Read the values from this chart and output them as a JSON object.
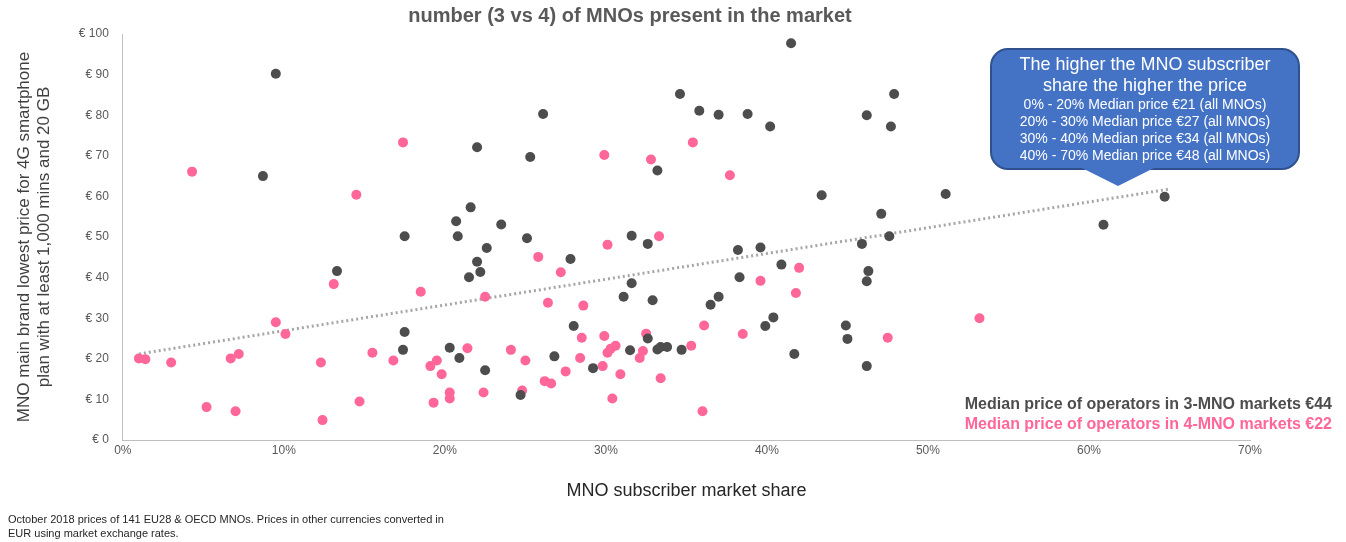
{
  "chart_data": {
    "type": "scatter",
    "title": "number (3 vs 4) of MNOs present in the market",
    "xlabel": "MNO subscriber market share",
    "ylabel": "MNO main brand lowest price for 4G smartphone plan with at least 1,000 mins and 20 GB",
    "xlim": [
      0,
      70
    ],
    "xticks": [
      {
        "value": 0,
        "label": "0%"
      },
      {
        "value": 10,
        "label": "10%"
      },
      {
        "value": 20,
        "label": "20%"
      },
      {
        "value": 30,
        "label": "30%"
      },
      {
        "value": 40,
        "label": "40%"
      },
      {
        "value": 50,
        "label": "50%"
      },
      {
        "value": 60,
        "label": "60%"
      },
      {
        "value": 70,
        "label": "70%"
      }
    ],
    "ylim": [
      0,
      100
    ],
    "yticks": [
      {
        "value": 0,
        "label": "€ 0"
      },
      {
        "value": 10,
        "label": "€ 10"
      },
      {
        "value": 20,
        "label": "€ 20"
      },
      {
        "value": 30,
        "label": "€ 30"
      },
      {
        "value": 40,
        "label": "€ 40"
      },
      {
        "value": 50,
        "label": "€ 50"
      },
      {
        "value": 60,
        "label": "€ 60"
      },
      {
        "value": 70,
        "label": "€ 70"
      },
      {
        "value": 80,
        "label": "€ 80"
      },
      {
        "value": 90,
        "label": "€ 90"
      },
      {
        "value": 100,
        "label": "€ 100"
      }
    ],
    "grid": false,
    "marker": "circle",
    "legend": "bottom right",
    "series": [
      {
        "name": "Median price of operators in 3-MNO markets €44",
        "color": "#4d4d4d",
        "x": [
          9.5,
          8.7,
          22.0,
          21.6,
          20.7,
          17.5,
          20.8,
          23.5,
          22.6,
          22.0,
          22.2,
          21.5,
          13.3,
          25.1,
          25.3,
          17.5,
          17.4,
          20.3,
          20.9,
          22.5,
          24.7,
          41.5,
          34.6,
          35.8,
          37.0,
          38.8,
          40.2,
          46.2,
          47.9,
          47.7,
          26.1,
          33.2,
          43.4,
          51.1,
          47.1,
          31.6,
          32.6,
          27.8,
          38.2,
          39.6,
          45.9,
          47.6,
          40.9,
          38.3,
          46.3,
          46.2,
          31.6,
          31.1,
          32.9,
          36.5,
          37.0,
          40.4,
          39.9,
          44.9,
          45.0,
          28.0,
          32.6,
          26.8,
          29.2,
          31.5,
          33.2,
          33.4,
          33.8,
          34.7,
          41.7,
          46.2,
          64.7,
          60.9
        ],
        "values": [
          90.2,
          65.0,
          72.1,
          57.3,
          53.9,
          50.2,
          50.2,
          53.1,
          47.3,
          43.9,
          41.4,
          40.1,
          41.6,
          49.7,
          69.7,
          26.6,
          22.2,
          22.7,
          20.2,
          17.2,
          11.1,
          97.7,
          85.2,
          81.1,
          80.1,
          80.3,
          77.2,
          80.0,
          85.2,
          77.2,
          80.3,
          66.4,
          60.3,
          60.6,
          55.7,
          50.3,
          48.3,
          44.6,
          46.8,
          47.4,
          48.3,
          50.2,
          43.2,
          40.1,
          41.6,
          39.1,
          38.6,
          35.3,
          34.4,
          33.3,
          35.3,
          30.2,
          28.1,
          28.2,
          24.9,
          28.1,
          25.0,
          20.6,
          17.7,
          22.1,
          22.3,
          22.9,
          22.9,
          22.2,
          21.2,
          18.2,
          59.9,
          53.0
        ]
      },
      {
        "name": "Median price of operators in 4-MNO markets €22",
        "color": "#ff6699",
        "x": [
          17.4,
          4.3,
          14.5,
          13.1,
          18.5,
          22.5,
          9.5,
          10.1,
          1.0,
          1.4,
          3.0,
          6.7,
          7.2,
          12.3,
          15.5,
          16.8,
          19.1,
          19.5,
          19.8,
          21.4,
          24.1,
          25.0,
          20.3,
          20.3,
          22.4,
          24.8,
          19.3,
          14.7,
          5.2,
          7.0,
          12.4,
          29.9,
          32.8,
          35.4,
          37.7,
          33.3,
          30.1,
          25.8,
          27.2,
          42.0,
          39.6,
          41.8,
          26.4,
          28.6,
          36.1,
          38.5,
          47.5,
          28.5,
          29.9,
          32.5,
          35.3,
          28.4,
          30.1,
          30.3,
          30.6,
          32.3,
          32.1,
          27.5,
          29.8,
          30.9,
          33.4,
          26.2,
          26.6,
          30.4,
          36.0,
          53.2
        ],
        "values": [
          73.3,
          66.1,
          60.4,
          38.4,
          36.5,
          35.3,
          29.0,
          26.1,
          20.1,
          19.9,
          19.1,
          20.1,
          21.2,
          19.1,
          21.5,
          19.6,
          18.2,
          19.6,
          16.2,
          22.6,
          22.2,
          19.6,
          11.7,
          10.2,
          11.7,
          12.2,
          9.2,
          9.5,
          8.1,
          7.1,
          4.9,
          70.2,
          69.1,
          73.3,
          65.2,
          50.2,
          48.1,
          45.1,
          41.3,
          42.4,
          39.2,
          36.2,
          33.8,
          33.1,
          28.2,
          26.1,
          25.2,
          25.2,
          25.6,
          26.2,
          23.2,
          20.2,
          21.5,
          22.5,
          23.2,
          21.9,
          20.2,
          16.9,
          18.2,
          16.2,
          15.2,
          14.5,
          13.9,
          10.2,
          7.1,
          30.0
        ]
      },
      {
        "type": "line",
        "color": "#a6a6a6",
        "line_style": "dotted",
        "marker": "none",
        "x": [
          1.0,
          65.0
        ],
        "values": [
          21.2,
          61.8
        ]
      }
    ],
    "annotations": [
      "The higher the MNO subscriber share the higher the price",
      "0% - 20% Median price €21 (all MNOs)",
      "20% - 30% Median price €27 (all MNOs)",
      "30% - 40% Median price €34 (all MNOs)",
      "40% - 70% Median price €48 (all MNOs)",
      "October 2018 prices of 141 EU28 & OECD MNOs.  Prices in other currencies converted in EUR using market exchange rates."
    ]
  }
}
